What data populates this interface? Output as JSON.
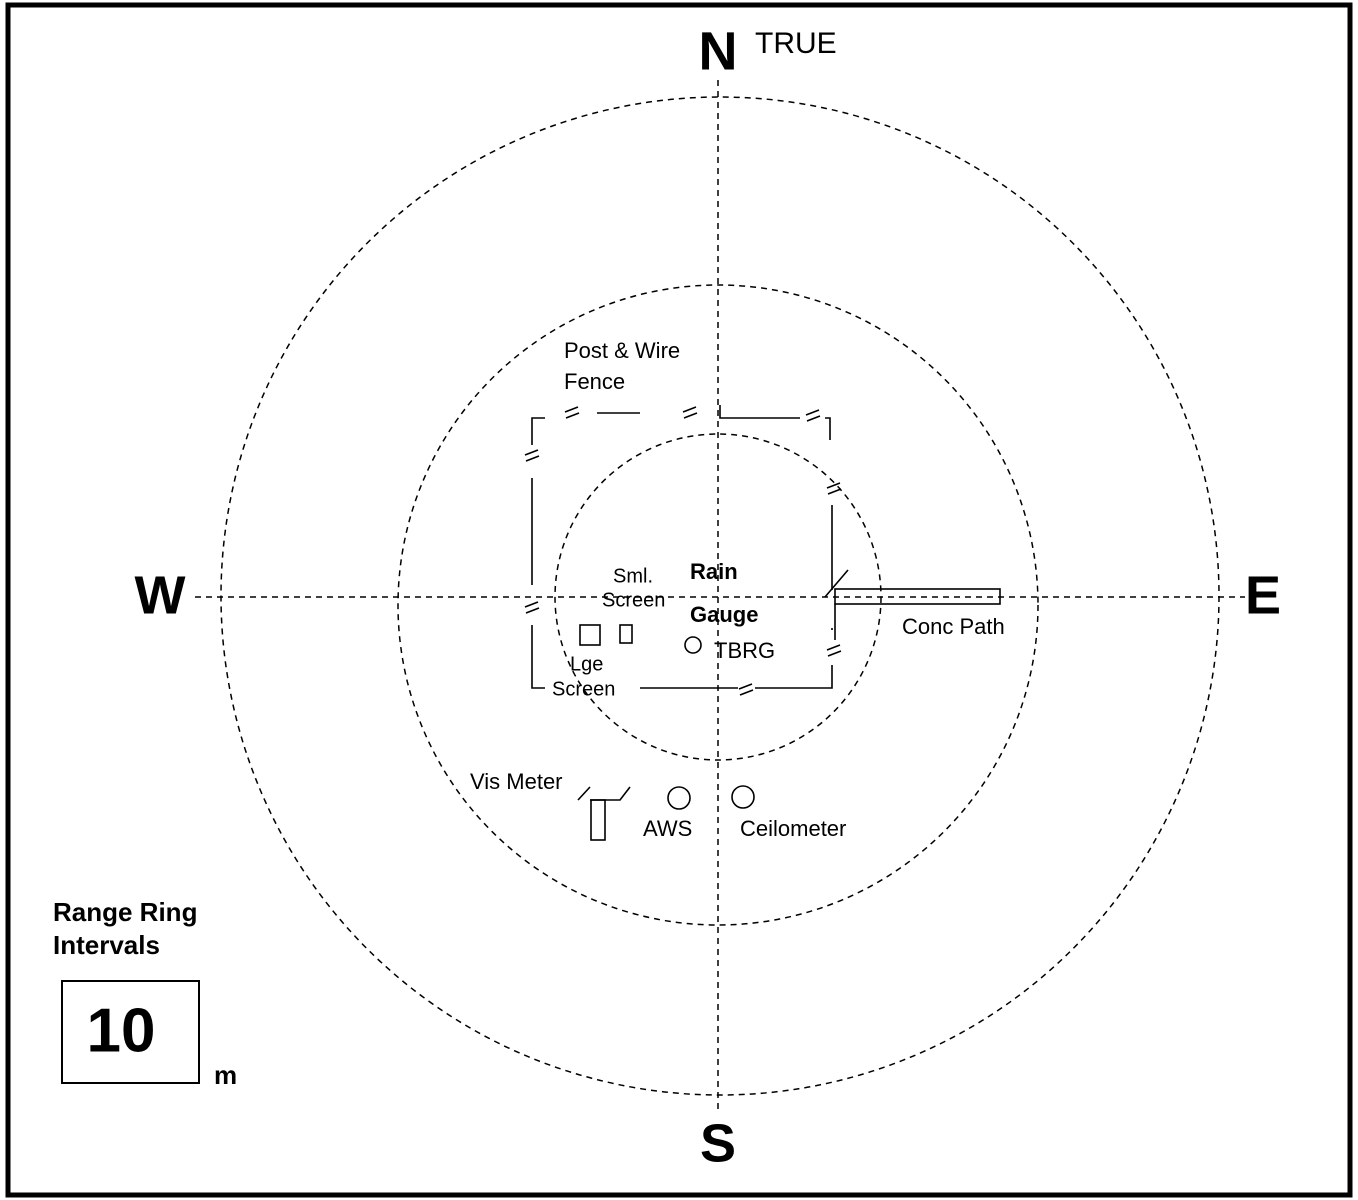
{
  "compass": {
    "north": "N",
    "true_label": "TRUE",
    "west": "W",
    "east": "E",
    "south": "S"
  },
  "labels": {
    "fence_line1": "Post & Wire",
    "fence_line2": "Fence",
    "sml_screen_line1": "Sml.",
    "sml_screen_line2": "Screen",
    "rain_gauge_line1": "Rain",
    "rain_gauge_line2": "Gauge",
    "tbrg": "TBRG",
    "lge_screen_line1": "Lge",
    "lge_screen_line2": "Screen",
    "conc_path": "Conc Path",
    "vis_meter": "Vis Meter",
    "aws": "AWS",
    "ceilometer": "Ceilometer"
  },
  "legend": {
    "title_line1": "Range Ring",
    "title_line2": "Intervals",
    "interval": "10",
    "unit": "m"
  }
}
